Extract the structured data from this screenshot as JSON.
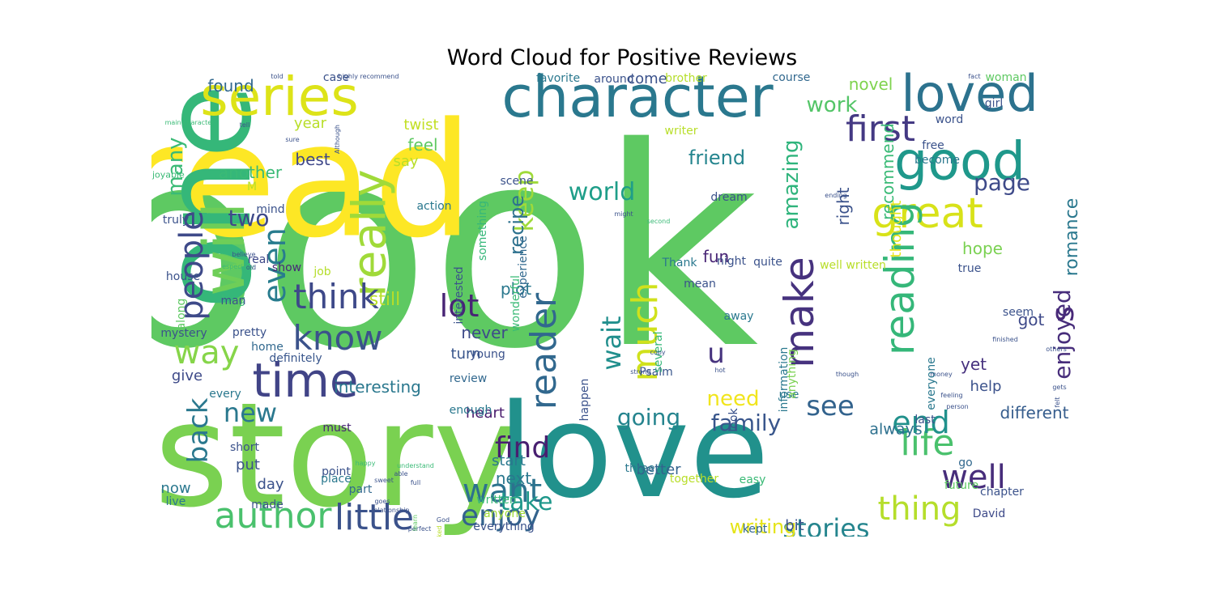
{
  "title": "Word Cloud for Positive Reviews",
  "palette": {
    "purple": "#482878",
    "indigo": "#3e4a89",
    "blue": "#31688e",
    "teal": "#26828e",
    "green_teal": "#1f9e89",
    "green": "#35b779",
    "light_green": "#6ece58",
    "lime": "#b5de2b",
    "yellow": "#fde725"
  },
  "words": [
    {
      "text": "book",
      "color": "#5ec962",
      "vertical": false
    },
    {
      "text": "read",
      "color": "#fde725",
      "vertical": false
    },
    {
      "text": "story",
      "color": "#7ad151",
      "vertical": false
    },
    {
      "text": "love",
      "color": "#21918c",
      "vertical": false
    },
    {
      "text": "one",
      "color": "#35b779",
      "vertical": true
    },
    {
      "text": "character",
      "color": "#2a788e",
      "vertical": false
    },
    {
      "text": "time",
      "color": "#414487",
      "vertical": false
    },
    {
      "text": "series",
      "color": "#dde318",
      "vertical": false
    },
    {
      "text": "will",
      "color": "#6ece58",
      "vertical": true
    },
    {
      "text": "loved",
      "color": "#2c728e",
      "vertical": false
    },
    {
      "text": "good",
      "color": "#1f988b",
      "vertical": false
    },
    {
      "text": "great",
      "color": "#d8e219",
      "vertical": false
    },
    {
      "text": "really",
      "color": "#a0da39",
      "vertical": true
    },
    {
      "text": "first",
      "color": "#443983",
      "vertical": false
    },
    {
      "text": "author",
      "color": "#4ac16d",
      "vertical": false
    },
    {
      "text": "know",
      "color": "#3b528b",
      "vertical": false
    },
    {
      "text": "way",
      "color": "#86d549",
      "vertical": false
    },
    {
      "text": "think",
      "color": "#3e4989",
      "vertical": false
    },
    {
      "text": "life",
      "color": "#4ac16d",
      "vertical": false
    },
    {
      "text": "little",
      "color": "#3b528b",
      "vertical": false
    },
    {
      "text": "want",
      "color": "#2c728e",
      "vertical": false
    },
    {
      "text": "find",
      "color": "#481f70",
      "vertical": false
    },
    {
      "text": "enjoy",
      "color": "#33638d",
      "vertical": false
    },
    {
      "text": "thing",
      "color": "#b5de2b",
      "vertical": false
    },
    {
      "text": "reading",
      "color": "#35b779",
      "vertical": true
    },
    {
      "text": "make",
      "color": "#46327e",
      "vertical": true
    },
    {
      "text": "much",
      "color": "#d0e11c",
      "vertical": true
    },
    {
      "text": "reader",
      "color": "#31688e",
      "vertical": true
    },
    {
      "text": "people",
      "color": "#3e4a89",
      "vertical": true
    },
    {
      "text": "even",
      "color": "#287c8e",
      "vertical": true
    },
    {
      "text": "back",
      "color": "#2a788e",
      "vertical": true
    },
    {
      "text": "lot",
      "color": "#482475",
      "vertical": false
    },
    {
      "text": "new",
      "color": "#2a788e",
      "vertical": false
    },
    {
      "text": "world",
      "color": "#1f9e89",
      "vertical": false
    },
    {
      "text": "keep",
      "color": "#9fda3a",
      "vertical": true
    },
    {
      "text": "wait",
      "color": "#218f8d",
      "vertical": true
    },
    {
      "text": "well",
      "color": "#472d7b",
      "vertical": false
    },
    {
      "text": "end",
      "color": "#21918c",
      "vertical": false
    },
    {
      "text": "see",
      "color": "#33638d",
      "vertical": false
    },
    {
      "text": "s",
      "color": "#482878",
      "vertical": true
    },
    {
      "text": "u",
      "color": "#46337e",
      "vertical": false
    },
    {
      "text": "stories",
      "color": "#25858e",
      "vertical": false
    },
    {
      "text": "family",
      "color": "#39568c",
      "vertical": false
    },
    {
      "text": "enjoyed",
      "color": "#472d7b",
      "vertical": true
    },
    {
      "text": "take",
      "color": "#1f988b",
      "vertical": false
    },
    {
      "text": "need",
      "color": "#f1e51d",
      "vertical": false
    },
    {
      "text": "going",
      "color": "#25848e",
      "vertical": false
    },
    {
      "text": "two",
      "color": "#3e4989",
      "vertical": false
    },
    {
      "text": "amazing",
      "color": "#2fb47c",
      "vertical": true
    },
    {
      "text": "page",
      "color": "#3e4a89",
      "vertical": false
    },
    {
      "text": "many",
      "color": "#3aba76",
      "vertical": true
    },
    {
      "text": "work",
      "color": "#54c568",
      "vertical": false
    },
    {
      "text": "writing",
      "color": "#e5e419",
      "vertical": false
    },
    {
      "text": "friend",
      "color": "#25858e",
      "vertical": false
    },
    {
      "text": "recipe",
      "color": "#2d718e",
      "vertical": true
    },
    {
      "text": "romance",
      "color": "#2a788e",
      "vertical": true
    },
    {
      "text": "interesting",
      "color": "#2a788e",
      "vertical": false
    },
    {
      "text": "different",
      "color": "#365d8d",
      "vertical": false
    },
    {
      "text": "always",
      "color": "#2d708e",
      "vertical": false
    },
    {
      "text": "hope",
      "color": "#7ad151",
      "vertical": false
    },
    {
      "text": "next",
      "color": "#2a788e",
      "vertical": false
    },
    {
      "text": "found",
      "color": "#31688e",
      "vertical": false
    },
    {
      "text": "novel",
      "color": "#7fd34e",
      "vertical": false
    },
    {
      "text": "best",
      "color": "#3f4889",
      "vertical": false
    },
    {
      "text": "feel",
      "color": "#5ec962",
      "vertical": false
    },
    {
      "text": "plot",
      "color": "#2a788e",
      "vertical": false
    },
    {
      "text": "fun",
      "color": "#482475",
      "vertical": false
    },
    {
      "text": "right",
      "color": "#3b528b",
      "vertical": true
    },
    {
      "text": "still",
      "color": "#b8de29",
      "vertical": false
    },
    {
      "text": "never",
      "color": "#3e4a89",
      "vertical": false
    },
    {
      "text": "better",
      "color": "#33638d",
      "vertical": false
    },
    {
      "text": "heart",
      "color": "#481a6c",
      "vertical": false
    },
    {
      "text": "start",
      "color": "#2a788e",
      "vertical": false
    },
    {
      "text": "yet",
      "color": "#46317e",
      "vertical": false
    },
    {
      "text": "help",
      "color": "#3b528b",
      "vertical": false
    },
    {
      "text": "another",
      "color": "#3aba76",
      "vertical": false
    },
    {
      "text": "twist",
      "color": "#c2df23",
      "vertical": false
    },
    {
      "text": "year",
      "color": "#b8de29",
      "vertical": false
    },
    {
      "text": "come",
      "color": "#3b528b",
      "vertical": false
    },
    {
      "text": "say",
      "color": "#b8de29",
      "vertical": false
    },
    {
      "text": "give",
      "color": "#3e4a89",
      "vertical": false
    },
    {
      "text": "turn",
      "color": "#39568c",
      "vertical": false
    },
    {
      "text": "recommend",
      "color": "#3aba76",
      "vertical": true
    },
    {
      "text": "thought",
      "color": "#e2e418",
      "vertical": true
    },
    {
      "text": "got",
      "color": "#3e4989",
      "vertical": false
    },
    {
      "text": "bit",
      "color": "#3b528b",
      "vertical": false
    },
    {
      "text": "day",
      "color": "#3b528b",
      "vertical": false
    },
    {
      "text": "put",
      "color": "#3b528b",
      "vertical": false
    },
    {
      "text": "now",
      "color": "#2a788e",
      "vertical": false
    },
    {
      "text": "David",
      "color": "#3e4a89",
      "vertical": false
    },
    {
      "text": "Psalm",
      "color": "#39568c",
      "vertical": false
    },
    {
      "text": "mystery",
      "color": "#3b528b",
      "vertical": false
    },
    {
      "text": "pretty",
      "color": "#3b528b",
      "vertical": false
    },
    {
      "text": "home",
      "color": "#31688e",
      "vertical": false
    },
    {
      "text": "definitely",
      "color": "#39568c",
      "vertical": false
    },
    {
      "text": "real",
      "color": "#3e4989",
      "vertical": false
    },
    {
      "text": "show",
      "color": "#482878",
      "vertical": false
    },
    {
      "text": "long",
      "color": "#3aba76",
      "vertical": false
    },
    {
      "text": "job",
      "color": "#b5de2b",
      "vertical": false
    },
    {
      "text": "man",
      "color": "#3b528b",
      "vertical": false
    },
    {
      "text": "every",
      "color": "#2a788e",
      "vertical": false
    },
    {
      "text": "short",
      "color": "#3b528b",
      "vertical": false
    },
    {
      "text": "live",
      "color": "#2a788e",
      "vertical": false
    },
    {
      "text": "made",
      "color": "#3b528b",
      "vertical": false
    },
    {
      "text": "point",
      "color": "#3b528b",
      "vertical": false
    },
    {
      "text": "place",
      "color": "#2a788e",
      "vertical": false
    },
    {
      "text": "must",
      "color": "#482475",
      "vertical": false
    },
    {
      "text": "part",
      "color": "#31688e",
      "vertical": false
    },
    {
      "text": "everything",
      "color": "#3b528b",
      "vertical": false
    },
    {
      "text": "anyone",
      "color": "#a0da39",
      "vertical": false
    },
    {
      "text": "written",
      "color": "#3aba76",
      "vertical": false
    },
    {
      "text": "three",
      "color": "#2a788e",
      "vertical": false
    },
    {
      "text": "together",
      "color": "#b8de29",
      "vertical": false
    },
    {
      "text": "kept",
      "color": "#31688e",
      "vertical": false
    },
    {
      "text": "easy",
      "color": "#3aba76",
      "vertical": false
    },
    {
      "text": "future",
      "color": "#5ec962",
      "vertical": false
    },
    {
      "text": "go",
      "color": "#31688e",
      "vertical": false
    },
    {
      "text": "chapter",
      "color": "#3b528b",
      "vertical": false
    },
    {
      "text": "last",
      "color": "#3b528b",
      "vertical": false
    },
    {
      "text": "look",
      "color": "#3b528b",
      "vertical": true
    },
    {
      "text": "use",
      "color": "#2a788e",
      "vertical": false
    },
    {
      "text": "anything",
      "color": "#7ad151",
      "vertical": true
    },
    {
      "text": "information",
      "color": "#2a788e",
      "vertical": true
    },
    {
      "text": "everyone",
      "color": "#2a788e",
      "vertical": true
    },
    {
      "text": "several",
      "color": "#35b779",
      "vertical": true
    },
    {
      "text": "review",
      "color": "#31688e",
      "vertical": false
    },
    {
      "text": "interested",
      "color": "#3b528b",
      "vertical": true
    },
    {
      "text": "something",
      "color": "#35b779",
      "vertical": true
    },
    {
      "text": "action",
      "color": "#2a788e",
      "vertical": false
    },
    {
      "text": "young",
      "color": "#3b528b",
      "vertical": false
    },
    {
      "text": "wonderful",
      "color": "#3aba76",
      "vertical": true
    },
    {
      "text": "experience",
      "color": "#31688e",
      "vertical": true
    },
    {
      "text": "happen",
      "color": "#3b528b",
      "vertical": true
    },
    {
      "text": "enough",
      "color": "#2a788e",
      "vertical": false
    },
    {
      "text": "away",
      "color": "#2a788e",
      "vertical": false
    },
    {
      "text": "mean",
      "color": "#3b528b",
      "vertical": false
    },
    {
      "text": "night",
      "color": "#3b528b",
      "vertical": false
    },
    {
      "text": "quite",
      "color": "#3b528b",
      "vertical": false
    },
    {
      "text": "Thank",
      "color": "#2a788e",
      "vertical": false
    },
    {
      "text": "dream",
      "color": "#3b528b",
      "vertical": false
    },
    {
      "text": "scene",
      "color": "#3b528b",
      "vertical": false
    },
    {
      "text": "writer",
      "color": "#b8de29",
      "vertical": false
    },
    {
      "text": "favorite",
      "color": "#2a788e",
      "vertical": false
    },
    {
      "text": "around",
      "color": "#3b528b",
      "vertical": false
    },
    {
      "text": "brother",
      "color": "#b5de2b",
      "vertical": false
    },
    {
      "text": "course",
      "color": "#31688e",
      "vertical": false
    },
    {
      "text": "woman",
      "color": "#5ec962",
      "vertical": false
    },
    {
      "text": "girl",
      "color": "#3b528b",
      "vertical": false
    },
    {
      "text": "word",
      "color": "#3b528b",
      "vertical": false
    },
    {
      "text": "free",
      "color": "#3b528b",
      "vertical": false
    },
    {
      "text": "become",
      "color": "#2a788e",
      "vertical": false
    },
    {
      "text": "well written",
      "color": "#b8de29",
      "vertical": false
    },
    {
      "text": "seem",
      "color": "#3b528b",
      "vertical": false
    },
    {
      "text": "true",
      "color": "#3b528b",
      "vertical": false
    },
    {
      "text": "case",
      "color": "#3b528b",
      "vertical": false
    },
    {
      "text": "mind",
      "color": "#3b528b",
      "vertical": false
    },
    {
      "text": "truly",
      "color": "#3b528b",
      "vertical": false
    },
    {
      "text": "house",
      "color": "#3b528b",
      "vertical": false
    },
    {
      "text": "along",
      "color": "#5ec962",
      "vertical": true
    },
    {
      "text": "M",
      "color": "#b8de29",
      "vertical": false
    },
    {
      "text": "enjoyable",
      "color": "#3aba76",
      "vertical": false
    },
    {
      "text": "told",
      "color": "#3b528b",
      "vertical": false
    },
    {
      "text": "highly recommend",
      "color": "#3b528b",
      "vertical": false
    },
    {
      "text": "fact",
      "color": "#3b528b",
      "vertical": false
    },
    {
      "text": "tell",
      "color": "#3b528b",
      "vertical": false
    },
    {
      "text": "main character",
      "color": "#3aba76",
      "vertical": false
    },
    {
      "text": "sure",
      "color": "#3b528b",
      "vertical": false
    },
    {
      "text": "Although",
      "color": "#3b528b",
      "vertical": true
    },
    {
      "text": "ending",
      "color": "#3b528b",
      "vertical": false
    },
    {
      "text": "might",
      "color": "#3b528b",
      "vertical": false
    },
    {
      "text": "second",
      "color": "#3aba76",
      "vertical": false
    },
    {
      "text": "believe",
      "color": "#3b528b",
      "vertical": false
    },
    {
      "text": "especially",
      "color": "#3aba76",
      "vertical": false
    },
    {
      "text": "old",
      "color": "#3b528b",
      "vertical": false
    },
    {
      "text": "finished",
      "color": "#3b528b",
      "vertical": false
    },
    {
      "text": "copy",
      "color": "#3b528b",
      "vertical": false
    },
    {
      "text": "strong",
      "color": "#3b528b",
      "vertical": false
    },
    {
      "text": "hot",
      "color": "#3b528b",
      "vertical": false
    },
    {
      "text": "though",
      "color": "#3b528b",
      "vertical": false
    },
    {
      "text": "others",
      "color": "#3b528b",
      "vertical": false
    },
    {
      "text": "gets",
      "color": "#3b528b",
      "vertical": false
    },
    {
      "text": "feeling",
      "color": "#3b528b",
      "vertical": false
    },
    {
      "text": "felt",
      "color": "#3b528b",
      "vertical": true
    },
    {
      "text": "person",
      "color": "#3b528b",
      "vertical": false
    },
    {
      "text": "money",
      "color": "#3b528b",
      "vertical": false
    },
    {
      "text": "happy",
      "color": "#3aba76",
      "vertical": false
    },
    {
      "text": "sweet",
      "color": "#3b528b",
      "vertical": false
    },
    {
      "text": "understand",
      "color": "#3aba76",
      "vertical": false
    },
    {
      "text": "able",
      "color": "#3b528b",
      "vertical": false
    },
    {
      "text": "full",
      "color": "#3b528b",
      "vertical": false
    },
    {
      "text": "relationship",
      "color": "#3b528b",
      "vertical": false
    },
    {
      "text": "goes",
      "color": "#3b528b",
      "vertical": false
    },
    {
      "text": "God",
      "color": "#3b528b",
      "vertical": false
    },
    {
      "text": "perfect",
      "color": "#3b528b",
      "vertical": false
    },
    {
      "text": "learn",
      "color": "#5ec962",
      "vertical": true
    },
    {
      "text": "liked",
      "color": "#b8de29",
      "vertical": true
    }
  ]
}
